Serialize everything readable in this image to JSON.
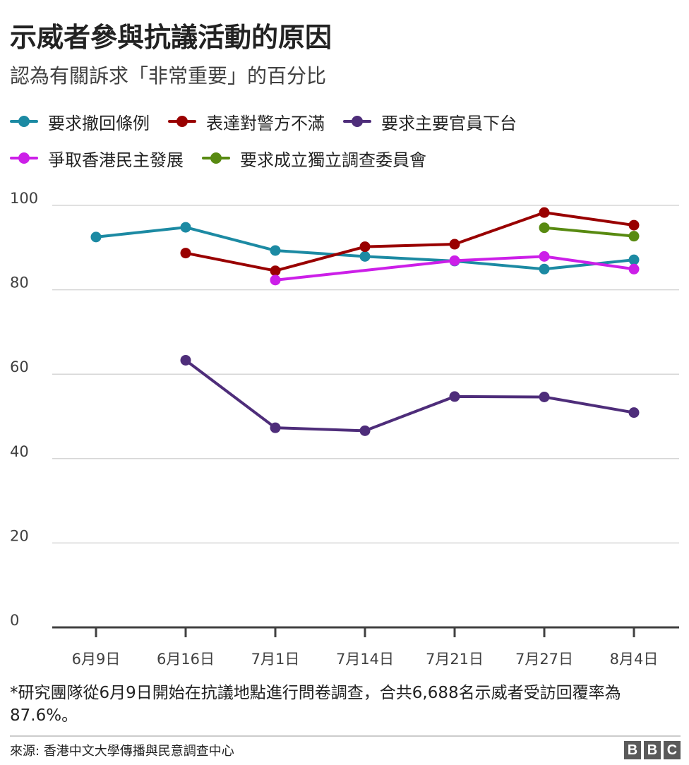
{
  "header": {
    "title": "示威者參與抗議活動的原因",
    "subtitle": "認為有關訴求「非常重要」的百分比"
  },
  "legend": [
    {
      "name": "要求撤回條例",
      "color": "#1c8aa3"
    },
    {
      "name": "表達對警方不滿",
      "color": "#990000"
    },
    {
      "name": "要求主要官員下台",
      "color": "#4e2d7a"
    },
    {
      "name": "爭取香港民主發展",
      "color": "#cc1fe8"
    },
    {
      "name": "要求成立獨立調查委員會",
      "color": "#588a11"
    }
  ],
  "chart_data": {
    "type": "line",
    "title": "示威者參與抗議活動的原因",
    "subtitle": "認為有關訴求「非常重要」的百分比",
    "categories": [
      "6月9日",
      "6月16日",
      "7月1日",
      "7月14日",
      "7月21日",
      "7月27日",
      "8月4日"
    ],
    "ylim": [
      0,
      100
    ],
    "yticks": [
      0,
      20,
      40,
      60,
      80,
      100
    ],
    "grid": true,
    "legend_position": "top",
    "series": [
      {
        "name": "要求撤回條例",
        "color": "#1c8aa3",
        "values": [
          92.5,
          94.8,
          89.3,
          87.9,
          86.8,
          84.9,
          87.1
        ]
      },
      {
        "name": "表達對警方不滿",
        "color": "#990000",
        "values": [
          null,
          88.7,
          84.5,
          90.2,
          90.8,
          98.3,
          95.3
        ]
      },
      {
        "name": "要求主要官員下台",
        "color": "#4e2d7a",
        "values": [
          null,
          63.3,
          47.3,
          46.6,
          54.7,
          54.6,
          50.9
        ]
      },
      {
        "name": "爭取香港民主發展",
        "color": "#cc1fe8",
        "values": [
          null,
          null,
          82.3,
          null,
          86.9,
          87.9,
          84.9
        ]
      },
      {
        "name": "要求成立獨立調查委員會",
        "color": "#588a11",
        "values": [
          null,
          null,
          null,
          null,
          null,
          94.7,
          92.7
        ]
      }
    ]
  },
  "footnote": "*研究團隊從6月9日開始在抗議地點進行問卷調查，合共6,688名示威者受訪回覆率為87.6%。",
  "footer": {
    "source": "來源: 香港中文大學傳播與民意調查中心",
    "logo_letters": [
      "B",
      "B",
      "C"
    ]
  }
}
